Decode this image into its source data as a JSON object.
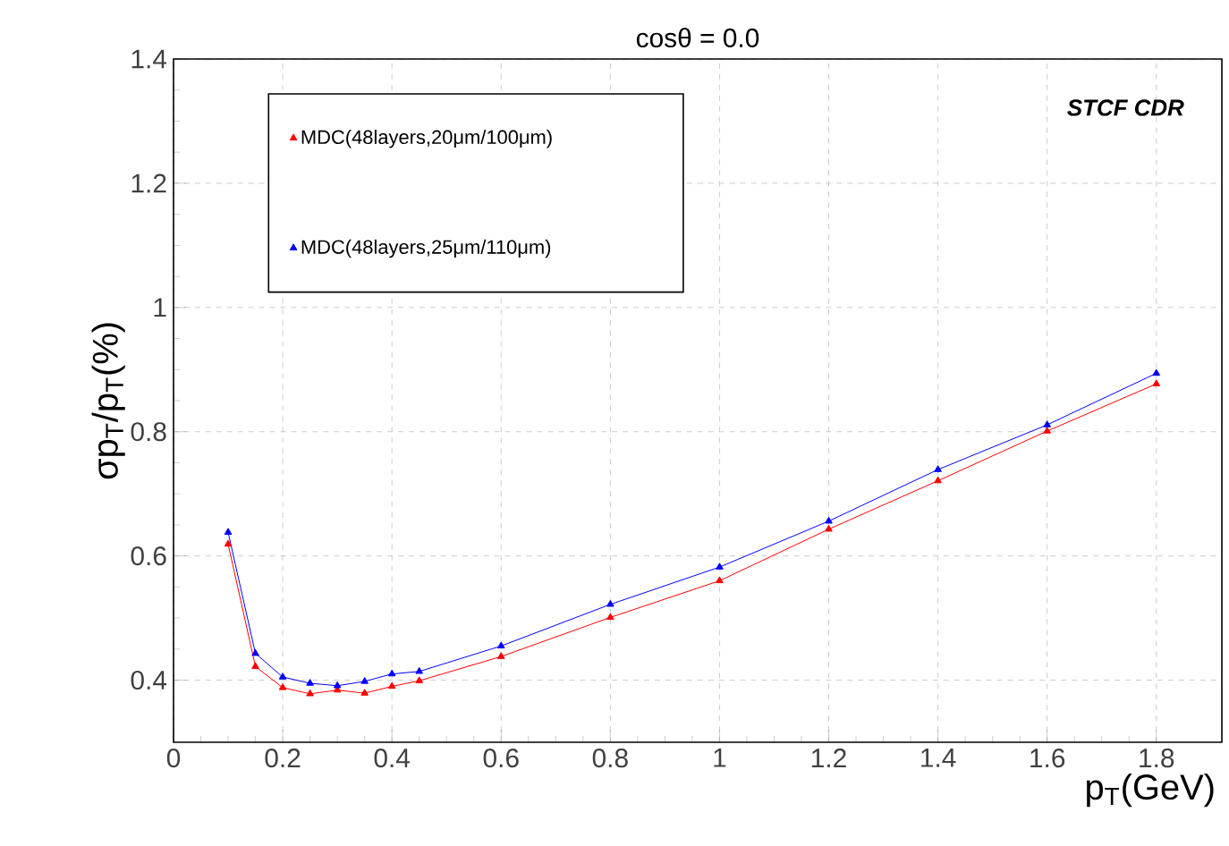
{
  "chart_data": {
    "type": "line",
    "title": "cosθ = 0.0",
    "xlabel": "p$_{T}$(GeV)",
    "ylabel": "σp$_{T}$/p$_{T}$(%)",
    "annotations": [
      "STCF CDR"
    ],
    "x": [
      0.1,
      0.15,
      0.2,
      0.25,
      0.3,
      0.35,
      0.4,
      0.45,
      0.6,
      0.8,
      1.0,
      1.2,
      1.4,
      1.6,
      1.8
    ],
    "series": [
      {
        "name": "MDC(48layers,20μm/100μm)",
        "color": "#ff0000",
        "values": [
          0.619,
          0.422,
          0.388,
          0.378,
          0.384,
          0.379,
          0.39,
          0.399,
          0.438,
          0.501,
          0.56,
          0.643,
          0.721,
          0.801,
          0.877
        ]
      },
      {
        "name": "MDC(48layers,25μm/110μm)",
        "color": "#0000ff",
        "values": [
          0.638,
          0.443,
          0.405,
          0.395,
          0.391,
          0.398,
          0.41,
          0.414,
          0.455,
          0.522,
          0.582,
          0.656,
          0.739,
          0.811,
          0.894
        ]
      }
    ],
    "xlim": [
      0,
      1.92
    ],
    "ylim": [
      0.3,
      1.4
    ],
    "xticks": [
      0,
      0.2,
      0.4,
      0.6,
      0.8,
      1,
      1.2,
      1.4,
      1.6,
      1.8
    ],
    "yticks": [
      0.4,
      0.6,
      0.8,
      1,
      1.2,
      1.4
    ],
    "grid": true,
    "legend": "top left",
    "marker": "triangle",
    "line_style": "solid"
  }
}
